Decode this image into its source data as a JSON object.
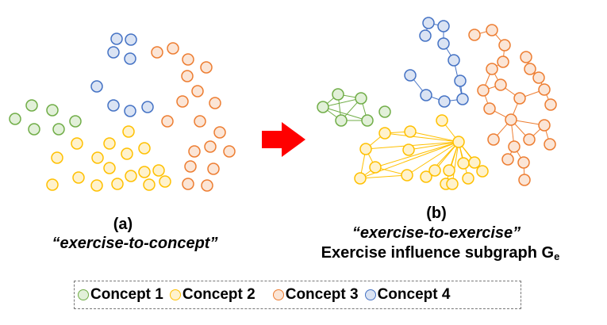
{
  "panels": {
    "a": {
      "label": "(a)",
      "caption": "“exercise-to-concept”"
    },
    "b": {
      "label": "(b)",
      "caption": "“exercise-to-exercise”",
      "subtitle": "Exercise influence subgraph G",
      "subtitle_sub": "e"
    }
  },
  "legend": [
    {
      "label": "Concept 1",
      "color": "#70AD47",
      "fill": "#E2F0D9"
    },
    {
      "label": "Concept 2",
      "color": "#FFC000",
      "fill": "#FFF2CC"
    },
    {
      "label": "Concept 3",
      "color": "#ED7D31",
      "fill": "#FBE5D6"
    },
    {
      "label": "Concept 4",
      "color": "#4472C4",
      "fill": "#DAE3F3"
    }
  ],
  "arrow": {
    "color": "#FF0000",
    "icon": "right-arrow-icon"
  }
}
